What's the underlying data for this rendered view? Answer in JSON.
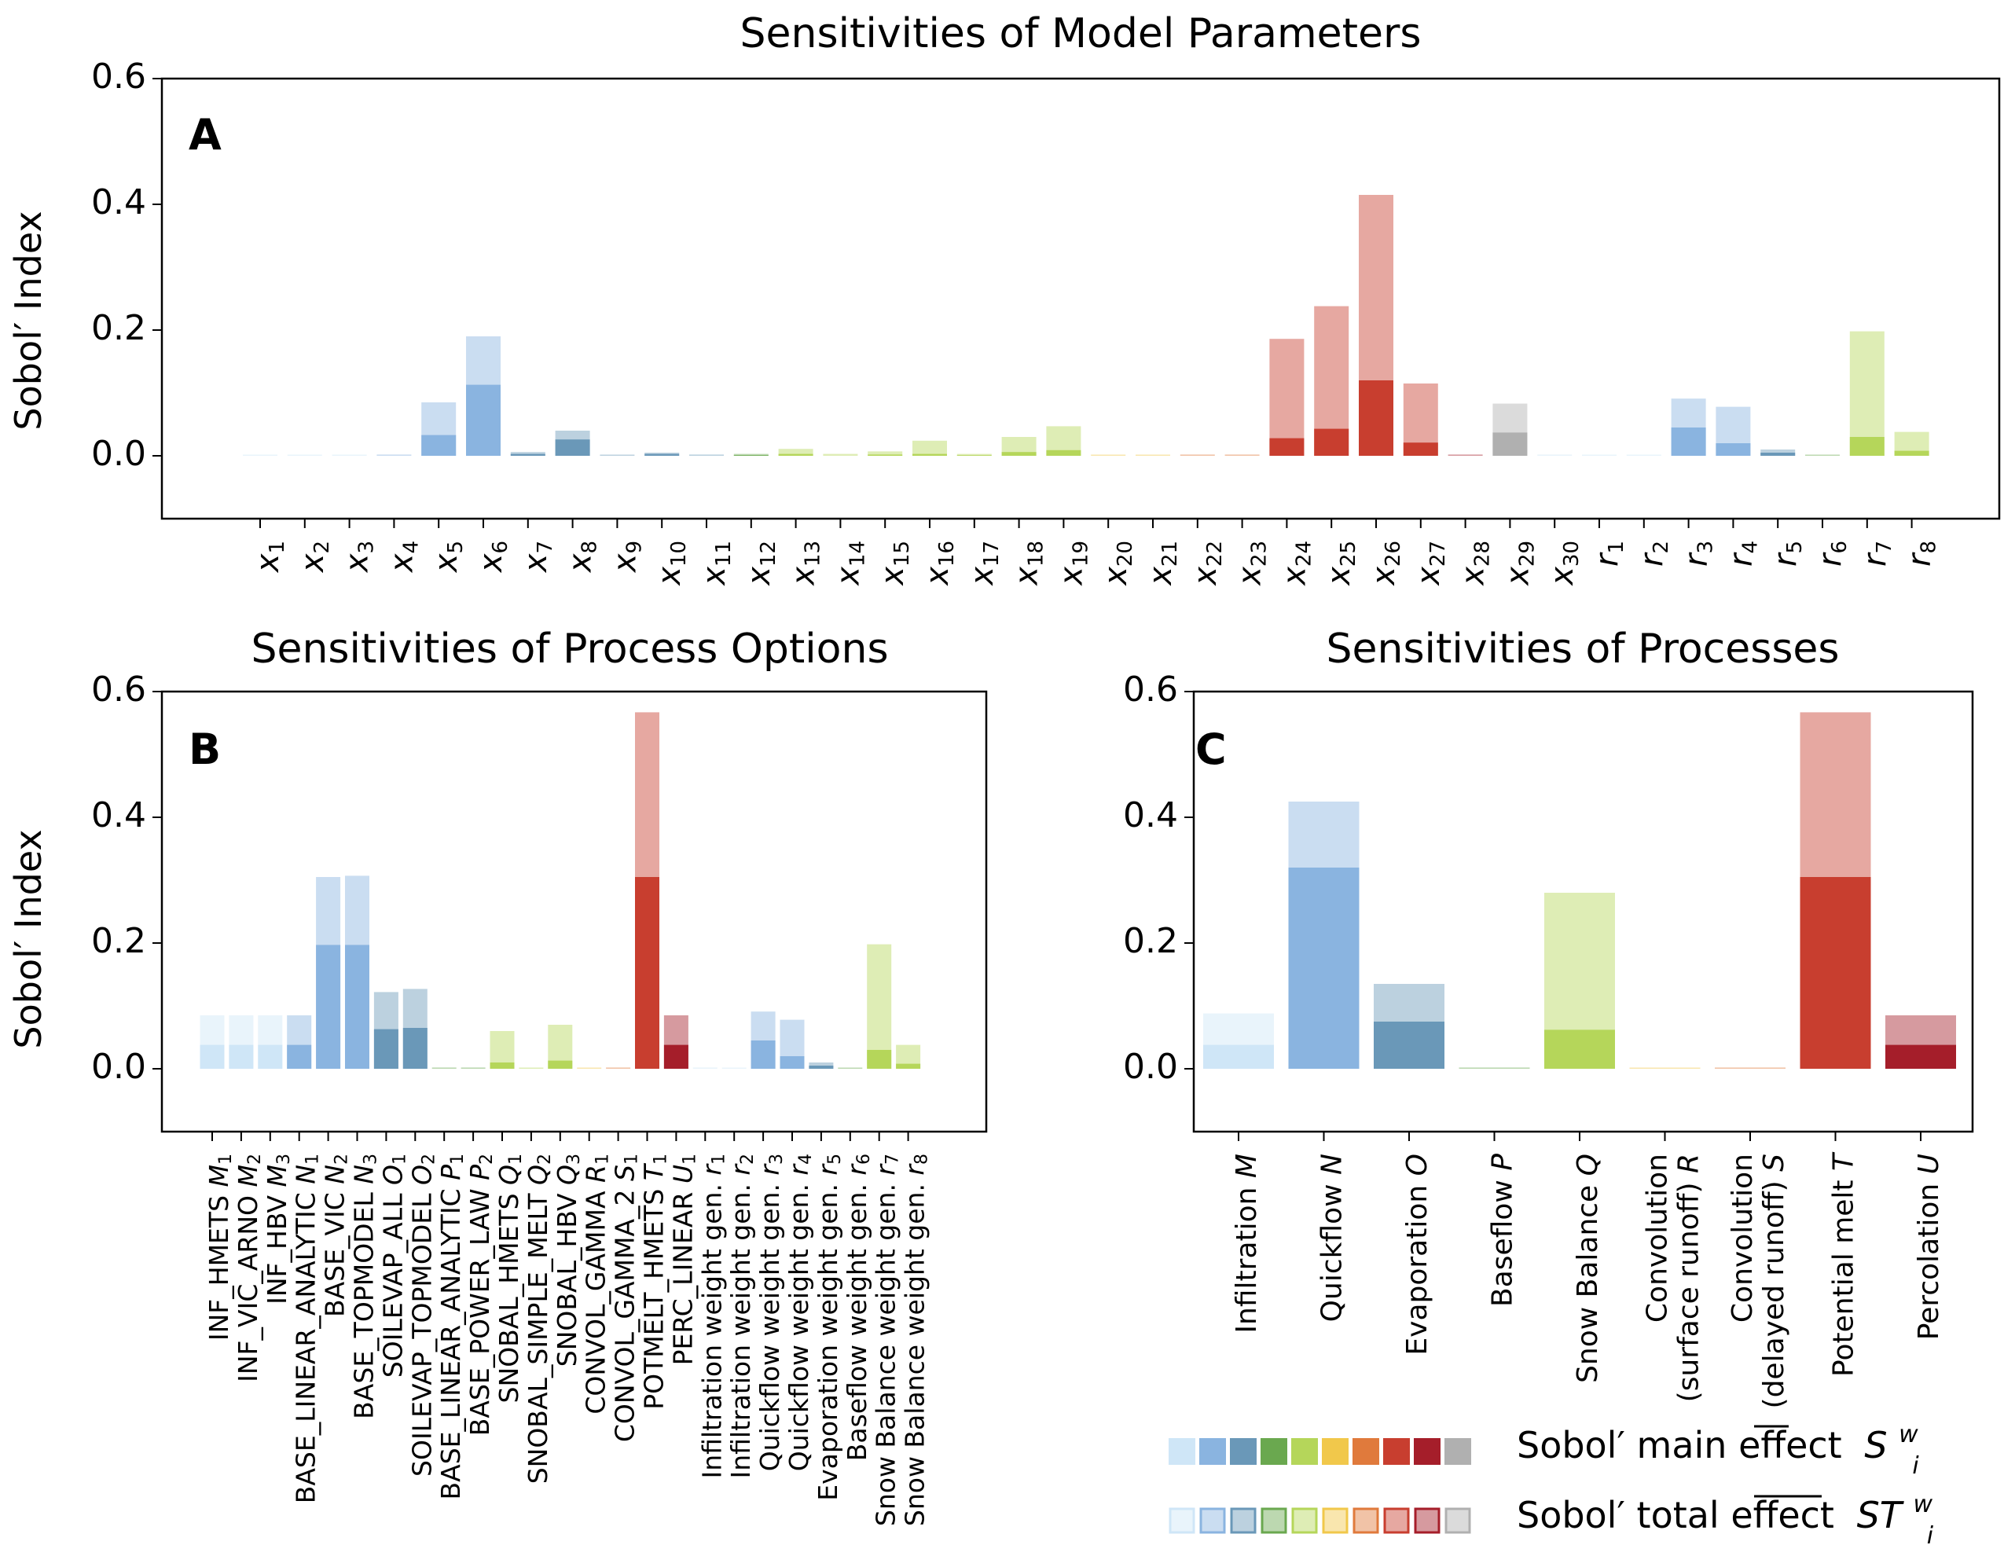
{
  "colors": {
    "lightblue": "#cfe6f7",
    "blue": "#8ab4e0",
    "steel": "#6a98b8",
    "green": "#6aa84f",
    "yellowgreen": "#b5d65a",
    "yellow": "#f1c84b",
    "orange": "#e07a3c",
    "red": "#c83e2f",
    "darkred": "#a51e2a",
    "gray": "#b0b0b0"
  },
  "legend": {
    "main_label": "Sobol′ main effect",
    "main_symbol": "S",
    "main_sup": "w",
    "main_sub": "i",
    "total_label": "Sobol′ total effect",
    "total_symbol": "ST",
    "total_sup": "w",
    "total_sub": "i",
    "swatch_colors": [
      "lightblue",
      "blue",
      "steel",
      "green",
      "yellowgreen",
      "yellow",
      "orange",
      "red",
      "darkred",
      "gray"
    ]
  },
  "chart_data": [
    {
      "id": "A",
      "type": "bar",
      "panel_label": "A",
      "title": "Sensitivities of Model Parameters",
      "ylabel": "Sobol′ Index",
      "ylim": [
        -0.1,
        0.6
      ],
      "yticks": [
        "0.6",
        "0.4",
        "0.2",
        "0.0"
      ],
      "ytick_values": [
        0.6,
        0.4,
        0.2,
        0.0
      ],
      "label_style": "symbol",
      "categories": [
        {
          "base": "x",
          "sub": "1"
        },
        {
          "base": "x",
          "sub": "2"
        },
        {
          "base": "x",
          "sub": "3"
        },
        {
          "base": "x",
          "sub": "4"
        },
        {
          "base": "x",
          "sub": "5"
        },
        {
          "base": "x",
          "sub": "6"
        },
        {
          "base": "x",
          "sub": "7"
        },
        {
          "base": "x",
          "sub": "8"
        },
        {
          "base": "x",
          "sub": "9"
        },
        {
          "base": "x",
          "sub": "10"
        },
        {
          "base": "x",
          "sub": "11"
        },
        {
          "base": "x",
          "sub": "12"
        },
        {
          "base": "x",
          "sub": "13"
        },
        {
          "base": "x",
          "sub": "14"
        },
        {
          "base": "x",
          "sub": "15"
        },
        {
          "base": "x",
          "sub": "16"
        },
        {
          "base": "x",
          "sub": "17"
        },
        {
          "base": "x",
          "sub": "18"
        },
        {
          "base": "x",
          "sub": "19"
        },
        {
          "base": "x",
          "sub": "20"
        },
        {
          "base": "x",
          "sub": "21"
        },
        {
          "base": "x",
          "sub": "22"
        },
        {
          "base": "x",
          "sub": "23"
        },
        {
          "base": "x",
          "sub": "24"
        },
        {
          "base": "x",
          "sub": "25"
        },
        {
          "base": "x",
          "sub": "26"
        },
        {
          "base": "x",
          "sub": "27"
        },
        {
          "base": "x",
          "sub": "28"
        },
        {
          "base": "x",
          "sub": "29"
        },
        {
          "base": "x",
          "sub": "30"
        },
        {
          "base": "r",
          "sub": "1"
        },
        {
          "base": "r",
          "sub": "2"
        },
        {
          "base": "r",
          "sub": "3"
        },
        {
          "base": "r",
          "sub": "4"
        },
        {
          "base": "r",
          "sub": "5"
        },
        {
          "base": "r",
          "sub": "6"
        },
        {
          "base": "r",
          "sub": "7"
        },
        {
          "base": "r",
          "sub": "8"
        }
      ],
      "colors": [
        "lightblue",
        "lightblue",
        "lightblue",
        "blue",
        "blue",
        "blue",
        "steel",
        "steel",
        "steel",
        "steel",
        "steel",
        "green",
        "yellowgreen",
        "yellowgreen",
        "yellowgreen",
        "yellowgreen",
        "yellowgreen",
        "yellowgreen",
        "yellowgreen",
        "yellow",
        "yellow",
        "orange",
        "orange",
        "red",
        "red",
        "red",
        "red",
        "darkred",
        "gray",
        "lightblue",
        "lightblue",
        "lightblue",
        "blue",
        "blue",
        "steel",
        "green",
        "yellowgreen",
        "yellowgreen"
      ],
      "main_effect": [
        0.0,
        0.0,
        0.0,
        0.0,
        0.033,
        0.113,
        0.003,
        0.026,
        0.0,
        0.003,
        0.0,
        0.001,
        0.003,
        0.0,
        0.002,
        0.003,
        0.001,
        0.006,
        0.009,
        0.0,
        0.0,
        0.0,
        0.0,
        0.028,
        0.043,
        0.12,
        0.021,
        0.0,
        0.037,
        0.0,
        0.0,
        0.0,
        0.045,
        0.02,
        0.005,
        0.0,
        0.03,
        0.008
      ],
      "total_effect": [
        0.001,
        0.001,
        0.001,
        0.002,
        0.085,
        0.19,
        0.006,
        0.04,
        0.0,
        0.005,
        0.002,
        0.003,
        0.011,
        0.003,
        0.007,
        0.024,
        0.003,
        0.03,
        0.047,
        0.001,
        0.001,
        0.002,
        0.002,
        0.186,
        0.238,
        0.415,
        0.115,
        0.002,
        0.083,
        0.002,
        0.001,
        0.001,
        0.091,
        0.078,
        0.01,
        0.001,
        0.198,
        0.038
      ]
    },
    {
      "id": "B",
      "type": "bar",
      "panel_label": "B",
      "title": "Sensitivities of Process Options",
      "ylabel": "Sobol′ Index",
      "ylim": [
        -0.1,
        0.6
      ],
      "yticks": [
        "0.6",
        "0.4",
        "0.2",
        "0.0"
      ],
      "ytick_values": [
        0.6,
        0.4,
        0.2,
        0.0
      ],
      "label_style": "text",
      "categories": [
        {
          "text": "INF_HMETS",
          "var": "M",
          "sub": "1"
        },
        {
          "text": "INF_VIC_ARNO",
          "var": "M",
          "sub": "2"
        },
        {
          "text": "INF_HBV",
          "var": "M",
          "sub": "3"
        },
        {
          "text": "BASE_LINEAR_ANALYTIC",
          "var": "N",
          "sub": "1"
        },
        {
          "text": "BASE_VIC",
          "var": "N",
          "sub": "2"
        },
        {
          "text": "BASE_TOPMODEL",
          "var": "N",
          "sub": "3"
        },
        {
          "text": "SOILEVAP_ALL",
          "var": "O",
          "sub": "1"
        },
        {
          "text": "SOILEVAP_TOPMODEL",
          "var": "O",
          "sub": "2"
        },
        {
          "text": "BASE_LINEAR_ANALYTIC",
          "var": "P",
          "sub": "1"
        },
        {
          "text": "BASE_POWER_LAW",
          "var": "P",
          "sub": "2"
        },
        {
          "text": "SNOBAL_HMETS",
          "var": "Q",
          "sub": "1"
        },
        {
          "text": "SNOBAL_SIMPLE_MELT",
          "var": "Q",
          "sub": "2"
        },
        {
          "text": "SNOBAL_HBV",
          "var": "Q",
          "sub": "3"
        },
        {
          "text": "CONVOL_GAMMA",
          "var": "R",
          "sub": "1"
        },
        {
          "text": "CONVOL_GAMMA_2",
          "var": "S",
          "sub": "1"
        },
        {
          "text": "POTMELT_HMETS",
          "var": "T",
          "sub": "1"
        },
        {
          "text": "PERC_LINEAR",
          "var": "U",
          "sub": "1"
        },
        {
          "text": "Infiltration weight gen.",
          "var": "r",
          "sub": "1"
        },
        {
          "text": "Infiltration weight gen.",
          "var": "r",
          "sub": "2"
        },
        {
          "text": "Quickflow weight gen.",
          "var": "r",
          "sub": "3"
        },
        {
          "text": "Quickflow weight gen.",
          "var": "r",
          "sub": "4"
        },
        {
          "text": "Evaporation weight gen.",
          "var": "r",
          "sub": "5"
        },
        {
          "text": "Baseflow weight gen.",
          "var": "r",
          "sub": "6"
        },
        {
          "text": "Snow Balance weight gen.",
          "var": "r",
          "sub": "7"
        },
        {
          "text": "Snow Balance weight gen.",
          "var": "r",
          "sub": "8"
        }
      ],
      "colors": [
        "lightblue",
        "lightblue",
        "lightblue",
        "blue",
        "blue",
        "blue",
        "steel",
        "steel",
        "green",
        "green",
        "yellowgreen",
        "yellowgreen",
        "yellowgreen",
        "yellow",
        "orange",
        "red",
        "darkred",
        "lightblue",
        "lightblue",
        "blue",
        "blue",
        "steel",
        "green",
        "yellowgreen",
        "yellowgreen"
      ],
      "main_effect": [
        0.038,
        0.038,
        0.038,
        0.038,
        0.197,
        0.197,
        0.063,
        0.065,
        0.0,
        0.0,
        0.01,
        0.0,
        0.013,
        0.0,
        0.0,
        0.305,
        0.038,
        0.0,
        0.0,
        0.045,
        0.02,
        0.005,
        0.0,
        0.03,
        0.008
      ],
      "total_effect": [
        0.085,
        0.085,
        0.085,
        0.085,
        0.305,
        0.307,
        0.122,
        0.127,
        0.002,
        0.002,
        0.06,
        0.001,
        0.07,
        0.001,
        0.002,
        0.567,
        0.085,
        0.002,
        0.001,
        0.091,
        0.078,
        0.01,
        0.001,
        0.198,
        0.038
      ]
    },
    {
      "id": "C",
      "type": "bar",
      "panel_label": "C",
      "title": "Sensitivities of Processes",
      "ylabel": "",
      "ylim": [
        -0.1,
        0.6
      ],
      "yticks": [
        "0.6",
        "0.4",
        "0.2",
        "0.0"
      ],
      "ytick_values": [
        0.6,
        0.4,
        0.2,
        0.0
      ],
      "label_style": "process",
      "categories": [
        {
          "lines": [
            "Infiltration"
          ],
          "var": "M"
        },
        {
          "lines": [
            "Quickflow"
          ],
          "var": "N"
        },
        {
          "lines": [
            "Evaporation"
          ],
          "var": "O"
        },
        {
          "lines": [
            "Baseflow"
          ],
          "var": "P"
        },
        {
          "lines": [
            "Snow Balance"
          ],
          "var": "Q"
        },
        {
          "lines": [
            "Convolution",
            "(surface runoff)"
          ],
          "var": "R"
        },
        {
          "lines": [
            "Convolution",
            "(delayed runoff)"
          ],
          "var": "S"
        },
        {
          "lines": [
            "Potential melt"
          ],
          "var": "T"
        },
        {
          "lines": [
            "Percolation"
          ],
          "var": "U"
        }
      ],
      "colors": [
        "lightblue",
        "blue",
        "steel",
        "green",
        "yellowgreen",
        "yellow",
        "orange",
        "red",
        "darkred"
      ],
      "main_effect": [
        0.038,
        0.32,
        0.075,
        0.0,
        0.062,
        0.0,
        0.0,
        0.305,
        0.038
      ],
      "total_effect": [
        0.088,
        0.425,
        0.135,
        0.002,
        0.28,
        0.001,
        0.002,
        0.567,
        0.085
      ]
    }
  ]
}
